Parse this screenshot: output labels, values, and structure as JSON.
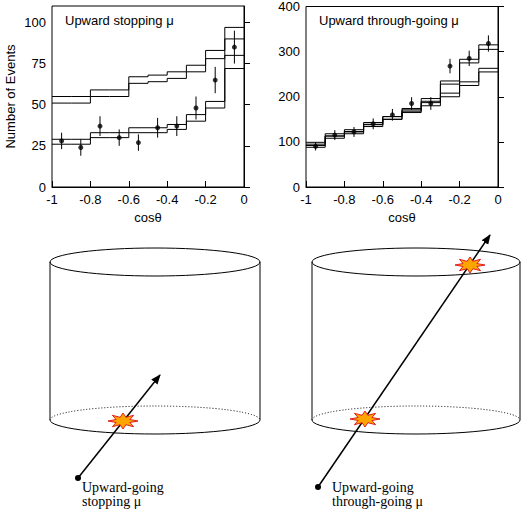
{
  "chart_data": [
    {
      "type": "histogram",
      "title": "Upward stopping μ",
      "x_label": "cosθ",
      "y_label": "Number of Events",
      "bins": [
        -1,
        -0.9,
        -0.8,
        -0.7,
        -0.6,
        -0.5,
        -0.4,
        -0.3,
        -0.2,
        -0.1,
        0
      ],
      "xlim": [
        -1,
        0
      ],
      "xticks": [
        -1,
        -0.8,
        -0.6,
        -0.4,
        -0.2,
        0
      ],
      "ylim": [
        0,
        110
      ],
      "yticks": [
        0,
        25,
        50,
        75,
        100
      ],
      "series": [
        {
          "type": "band",
          "color": "#000000",
          "lower": [
            51,
            51,
            55,
            55,
            63,
            64,
            66,
            70,
            78,
            90
          ],
          "upper": [
            55,
            55,
            59,
            59,
            67,
            68,
            70,
            74,
            83,
            97
          ]
        },
        {
          "type": "band",
          "color": "#000000",
          "lower": [
            26,
            26,
            30,
            30,
            33,
            33,
            35,
            40,
            48,
            72
          ],
          "upper": [
            29,
            29,
            33,
            33,
            36,
            36,
            38,
            44,
            52,
            80
          ]
        },
        {
          "type": "scatter",
          "marker": "circle",
          "color": "#000000",
          "x": [
            -0.95,
            -0.85,
            -0.75,
            -0.65,
            -0.55,
            -0.45,
            -0.35,
            -0.25,
            -0.15,
            -0.05
          ],
          "values": [
            28,
            24,
            37,
            30,
            27,
            36,
            37,
            48,
            65,
            85
          ],
          "errors": [
            5,
            5,
            6,
            5,
            5,
            6,
            6,
            7,
            8,
            10
          ]
        }
      ]
    },
    {
      "type": "histogram",
      "title": "Upward through-going μ",
      "x_label": "cosθ",
      "bins": [
        -1,
        -0.9,
        -0.8,
        -0.7,
        -0.6,
        -0.5,
        -0.4,
        -0.3,
        -0.2,
        -0.1,
        0
      ],
      "xlim": [
        -1,
        0
      ],
      "xticks": [
        -1,
        -0.8,
        -0.6,
        -0.4,
        -0.2,
        0
      ],
      "ylim": [
        0,
        400
      ],
      "yticks": [
        0,
        100,
        200,
        300,
        400
      ],
      "series": [
        {
          "type": "band",
          "color": "#000000",
          "lower": [
            95,
            113,
            122,
            138,
            150,
            165,
            180,
            200,
            225,
            255
          ],
          "upper": [
            99,
            118,
            127,
            143,
            156,
            171,
            187,
            208,
            233,
            263
          ]
        },
        {
          "type": "band",
          "color": "#000000",
          "lower": [
            88,
            108,
            118,
            134,
            150,
            168,
            190,
            228,
            275,
            305
          ],
          "upper": [
            92,
            113,
            123,
            139,
            156,
            174,
            196,
            235,
            283,
            315
          ]
        },
        {
          "type": "scatter",
          "marker": "circle",
          "color": "#000000",
          "x": [
            -0.95,
            -0.85,
            -0.75,
            -0.65,
            -0.55,
            -0.45,
            -0.35,
            -0.25,
            -0.15,
            -0.05
          ],
          "values": [
            90,
            115,
            122,
            140,
            160,
            185,
            185,
            268,
            285,
            318
          ],
          "errors": [
            9,
            11,
            11,
            12,
            13,
            14,
            14,
            16,
            17,
            18
          ]
        }
      ]
    }
  ],
  "diagrams": [
    {
      "label": "Upward-going stopping μ"
    },
    {
      "label": "Upward-going through-going μ"
    }
  ]
}
